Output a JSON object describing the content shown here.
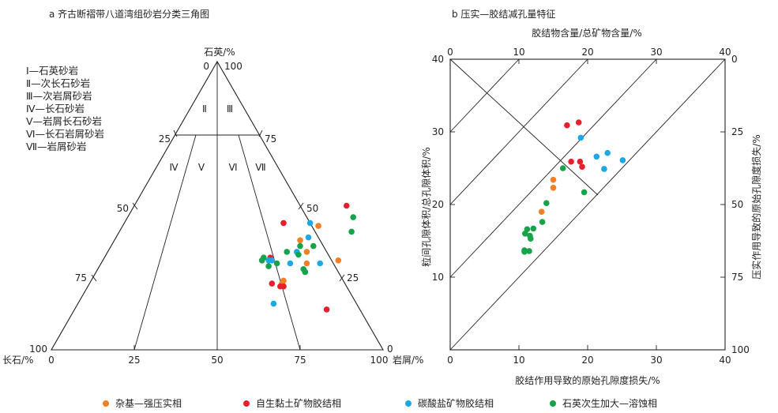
{
  "colors": {
    "matrix": "#f07f26",
    "clay": "#e5202e",
    "carbonate": "#1ba8e4",
    "quartz": "#16a34a",
    "ink": "#231f20"
  },
  "legend": [
    {
      "label": "杂基—强压实相",
      "color": "#f07f26"
    },
    {
      "label": "自生黏土矿物胶结相",
      "color": "#e5202e"
    },
    {
      "label": "碳酸盐矿物胶结相",
      "color": "#1ba8e4"
    },
    {
      "label": "石英次生加大—溶蚀相",
      "color": "#16a34a"
    }
  ],
  "chart_data": [
    {
      "type": "scatter",
      "subtype": "ternary",
      "title": "a 齐古断褶带八道湾组砂岩分类三角图",
      "vertices": {
        "top": "石英/%",
        "left": "长石/%",
        "right": "岩屑/%"
      },
      "quartz_ticks": [
        "0",
        "25",
        "50",
        "75",
        "100"
      ],
      "feldspar_ticks": [
        "100",
        "75",
        "50",
        "25",
        "0"
      ],
      "lithic_ticks": [
        "100",
        "75",
        "50",
        "25",
        "0"
      ],
      "base_ticks": [
        "0",
        "25",
        "50",
        "75",
        "100"
      ],
      "classes": [
        {
          "numeral": "Ⅰ",
          "name": "Ⅰ—石英砂岩"
        },
        {
          "numeral": "Ⅱ",
          "name": "Ⅱ—次长石砂岩"
        },
        {
          "numeral": "Ⅲ",
          "name": "Ⅲ—次岩屑砂岩"
        },
        {
          "numeral": "Ⅳ",
          "name": "Ⅳ—长石砂岩"
        },
        {
          "numeral": "Ⅴ",
          "name": "Ⅴ—岩屑长石砂岩"
        },
        {
          "numeral": "Ⅵ",
          "name": "Ⅵ—长石岩屑砂岩"
        },
        {
          "numeral": "Ⅶ",
          "name": "Ⅶ—岩屑砂岩"
        }
      ],
      "points_Q_L": {
        "matrix": [
          [
            43,
            59
          ],
          [
            38,
            56
          ],
          [
            34,
            60
          ],
          [
            30,
            62
          ],
          [
            31,
            71
          ],
          [
            23,
            58
          ],
          [
            24,
            58
          ],
          [
            22,
            59
          ]
        ],
        "clay": [
          [
            50,
            64
          ],
          [
            44,
            48
          ],
          [
            32,
            50
          ],
          [
            31,
            48
          ],
          [
            23,
            55
          ],
          [
            22,
            58
          ],
          [
            22,
            59
          ],
          [
            14,
            76
          ]
        ],
        "carbonate": [
          [
            44,
            56
          ],
          [
            39,
            58
          ],
          [
            34,
            57
          ],
          [
            31,
            51
          ],
          [
            30,
            57
          ],
          [
            27,
            63
          ],
          [
            30,
            66
          ],
          [
            31,
            50
          ],
          [
            16,
            59
          ]
        ],
        "quartz": [
          [
            46,
            68
          ],
          [
            41,
            70
          ],
          [
            36,
            61
          ],
          [
            36,
            57
          ],
          [
            34,
            54
          ],
          [
            33,
            58
          ],
          [
            31,
            48
          ],
          [
            32,
            48
          ],
          [
            28,
            62
          ],
          [
            27,
            63
          ],
          [
            30,
            53
          ],
          [
            29,
            51
          ]
        ]
      }
    },
    {
      "type": "scatter",
      "title": "b 压实—胶结减孔量特征",
      "xlabel": "胶结作用导致的原始孔隙度损失/%",
      "ylabel": "粒间孔隙体积/总孔隙体积/%",
      "top_axis_label": "胶结物含量/总矿物含量/%",
      "right_axis_label": "压实作用导致的原始孔隙度损失/%",
      "xlim": [
        0,
        40
      ],
      "ylim": [
        0,
        40
      ],
      "x_ticks": [
        "0",
        "10",
        "20",
        "30",
        "40"
      ],
      "y_ticks": [
        "10",
        "20",
        "30",
        "40"
      ],
      "top_ticks": [
        "0",
        "10",
        "20",
        "30",
        "40"
      ],
      "right_ticks": [
        "100",
        "75",
        "50",
        "25",
        "0"
      ],
      "points": {
        "matrix": [
          [
            15.0,
            23.4
          ],
          [
            15.0,
            22.3
          ],
          [
            13.3,
            19.0
          ]
        ],
        "clay": [
          [
            17.0,
            30.9
          ],
          [
            18.7,
            31.3
          ],
          [
            17.6,
            25.9
          ],
          [
            18.9,
            25.9
          ],
          [
            19.2,
            25.2
          ]
        ],
        "carbonate": [
          [
            19.0,
            29.2
          ],
          [
            21.3,
            26.6
          ],
          [
            22.9,
            27.1
          ],
          [
            22.4,
            24.9
          ],
          [
            25.1,
            26.1
          ]
        ],
        "quartz": [
          [
            16.4,
            25.0
          ],
          [
            19.5,
            21.7
          ],
          [
            14.0,
            20.2
          ],
          [
            13.4,
            17.6
          ],
          [
            12.1,
            16.7
          ],
          [
            11.2,
            16.6
          ],
          [
            11.6,
            15.7
          ],
          [
            11.7,
            15.3
          ],
          [
            10.9,
            16.0
          ],
          [
            10.8,
            13.7
          ],
          [
            11.5,
            13.6
          ],
          [
            10.8,
            13.5
          ]
        ]
      }
    }
  ]
}
